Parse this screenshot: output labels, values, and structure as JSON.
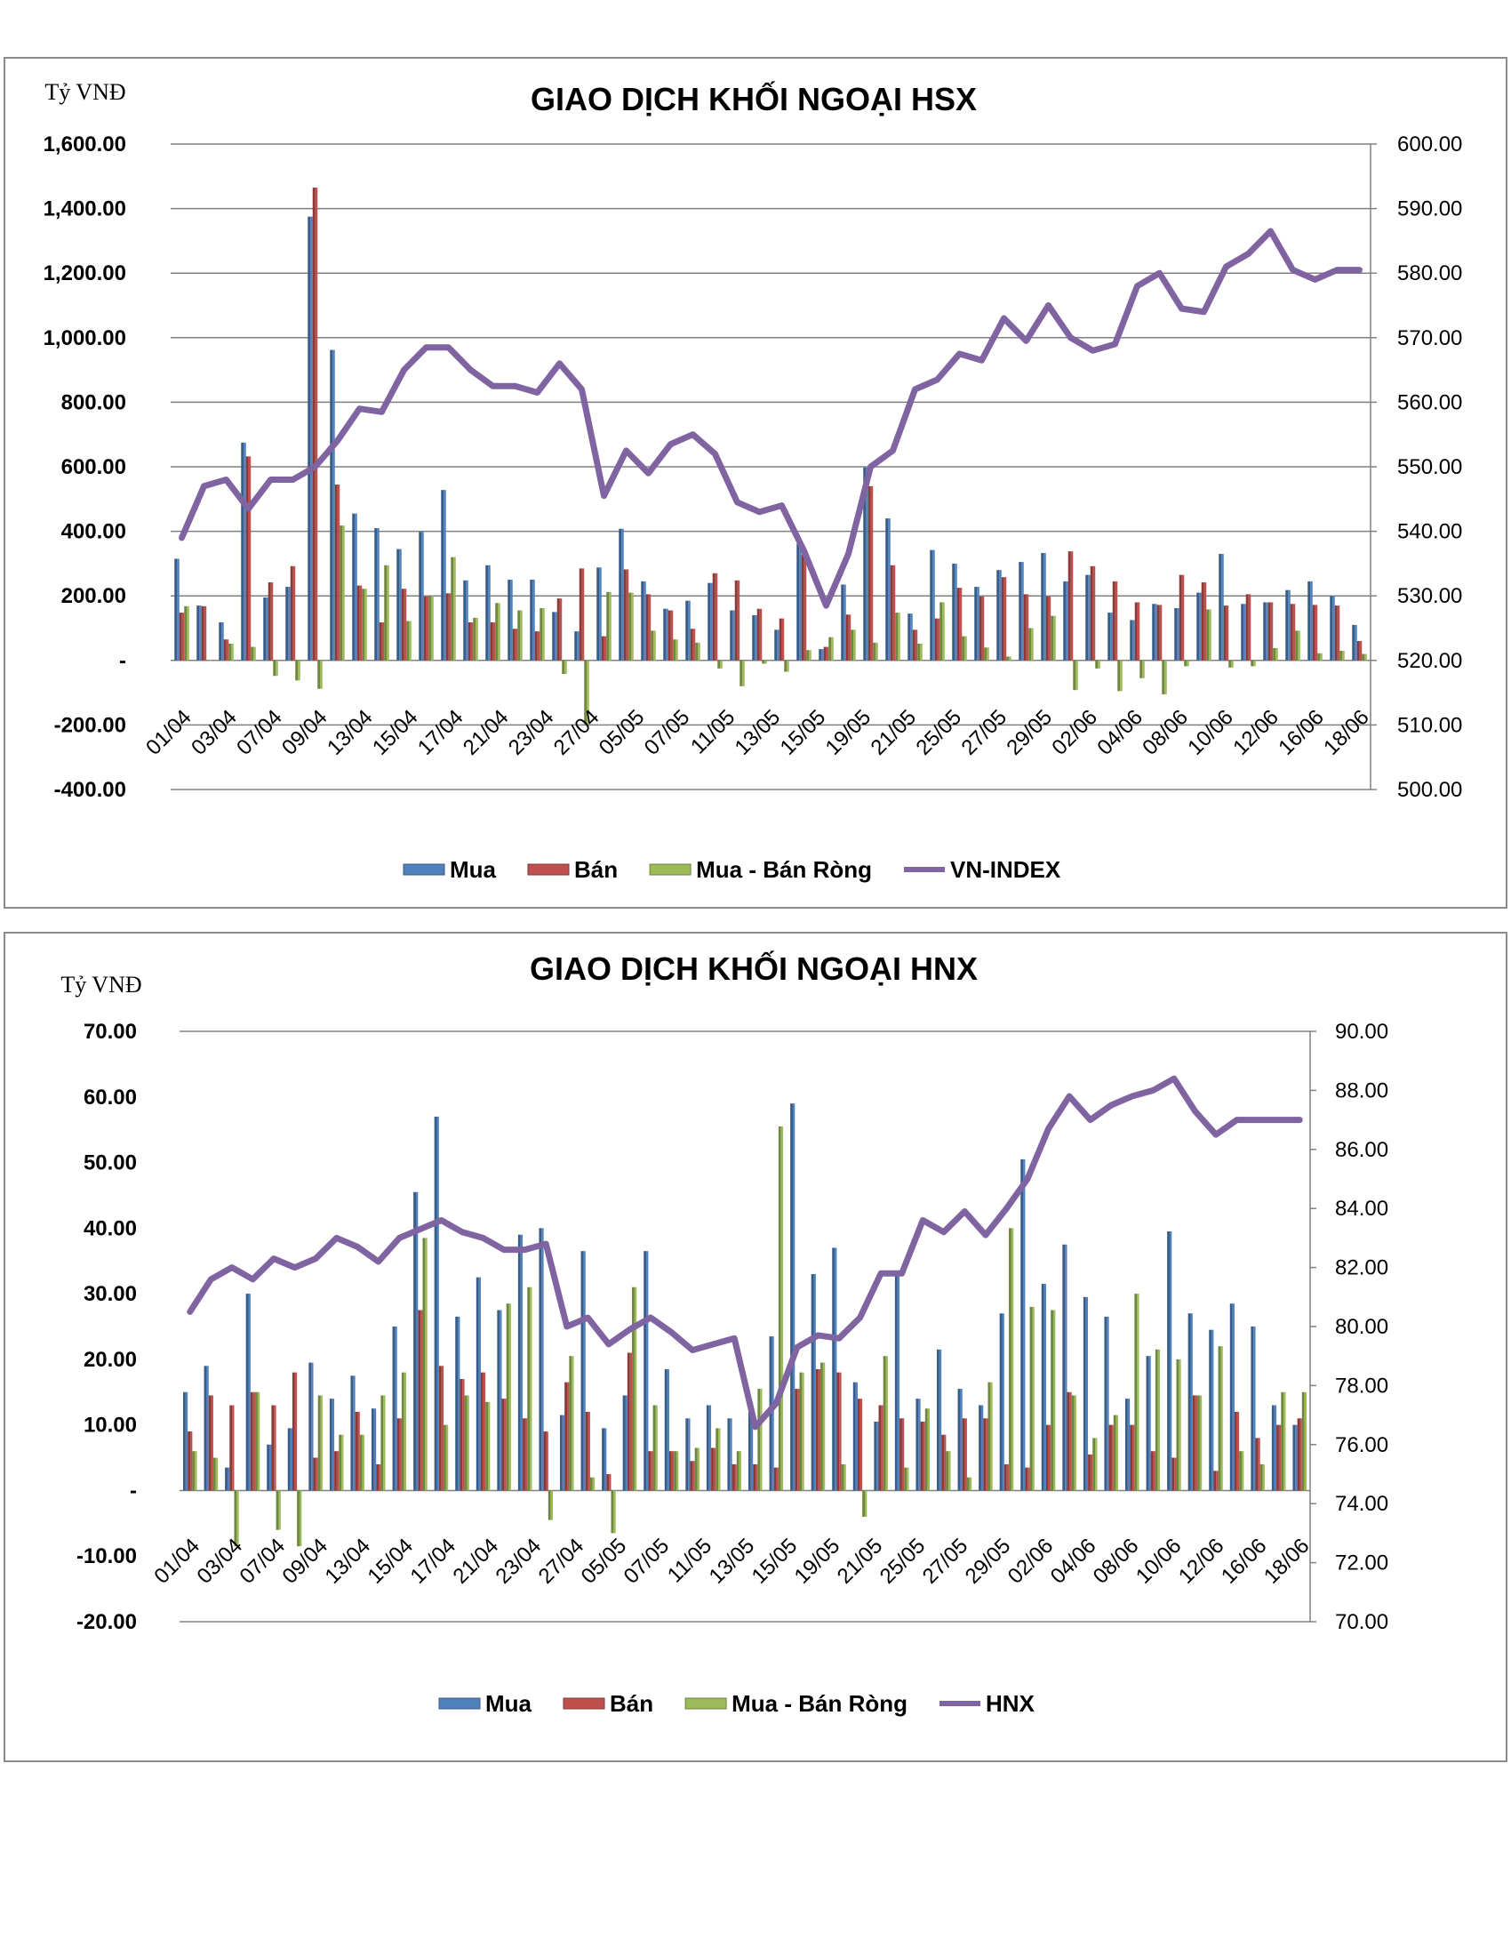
{
  "chart_data": [
    {
      "type": "bar",
      "title": "GIAO DỊCH KHỐI NGOẠI HSX",
      "ylabel": "Tỷ VNĐ",
      "y_ticks": [
        "1,600.00",
        "1,400.00",
        "1,200.00",
        "1,000.00",
        "800.00",
        "600.00",
        "400.00",
        "200.00",
        "-",
        "-200.00",
        "-400.00"
      ],
      "y2_ticks": [
        "600.00",
        "590.00",
        "580.00",
        "570.00",
        "560.00",
        "550.00",
        "540.00",
        "530.00",
        "520.00",
        "510.00",
        "500.00"
      ],
      "ylim": [
        -400,
        1600
      ],
      "y2lim": [
        500,
        600
      ],
      "x_tick_labels": [
        "01/04",
        "03/04",
        "07/04",
        "09/04",
        "13/04",
        "15/04",
        "17/04",
        "21/04",
        "23/04",
        "27/04",
        "05/05",
        "07/05",
        "11/05",
        "13/05",
        "15/05",
        "19/05",
        "21/05",
        "25/05",
        "27/05",
        "29/05",
        "02/06",
        "04/06",
        "08/06",
        "10/06",
        "12/06",
        "16/06",
        "18/06"
      ],
      "n_points": 54,
      "legend_position": "bottom",
      "grid": true,
      "series": [
        {
          "name": "Mua",
          "color": "#4f81bd",
          "axis": "left",
          "values": [
            315,
            170,
            118,
            675,
            195,
            228,
            1375,
            962,
            455,
            410,
            345,
            398,
            528,
            248,
            295,
            250,
            250,
            150,
            90,
            288,
            408,
            245,
            160,
            185,
            240,
            155,
            140,
            95,
            362,
            35,
            235,
            598,
            440,
            145,
            342,
            300,
            228,
            280,
            305,
            333,
            245,
            265,
            148,
            125,
            175,
            162,
            210,
            330,
            175,
            180,
            218,
            245,
            200,
            110
          ]
        },
        {
          "name": "Bán",
          "color": "#c0504d",
          "axis": "left",
          "values": [
            148,
            168,
            65,
            632,
            242,
            292,
            1465,
            545,
            232,
            118,
            222,
            198,
            208,
            118,
            118,
            98,
            90,
            192,
            285,
            75,
            282,
            205,
            155,
            98,
            270,
            248,
            160,
            130,
            328,
            42,
            142,
            540,
            295,
            95,
            130,
            225,
            198,
            258,
            205,
            198,
            338,
            292,
            245,
            180,
            172,
            265,
            242,
            170,
            205,
            180,
            175,
            172,
            170,
            60
          ]
        },
        {
          "name": "Mua - Bán Ròng",
          "color": "#9bbb59",
          "axis": "left",
          "values": [
            168,
            2,
            52,
            42,
            -48,
            -62,
            -88,
            418,
            222,
            295,
            122,
            200,
            320,
            132,
            178,
            155,
            162,
            -42,
            -198,
            212,
            210,
            92,
            65,
            55,
            -25,
            -80,
            -10,
            -35,
            32,
            72,
            95,
            55,
            148,
            52,
            180,
            75,
            40,
            12,
            100,
            138,
            -92,
            -25,
            -95,
            -55,
            -105,
            -18,
            158,
            -22,
            -18,
            38,
            92,
            22,
            30,
            20
          ]
        },
        {
          "name": "VN-INDEX",
          "color": "#8064a2",
          "axis": "right",
          "type": "line",
          "values": [
            539,
            547,
            548,
            543.5,
            548,
            548,
            550,
            554,
            559,
            558.5,
            565,
            568.5,
            568.5,
            565,
            562.5,
            562.5,
            561.5,
            566,
            562,
            545.5,
            552.5,
            549,
            553.5,
            555,
            552,
            544.5,
            543,
            544,
            537,
            528.5,
            536.5,
            550,
            552.5,
            562,
            563.5,
            567.5,
            566.5,
            573,
            569.5,
            575,
            570,
            568,
            569,
            578,
            580,
            574.5,
            574,
            581,
            583,
            586.5,
            580.5,
            579,
            580.5,
            580.5
          ]
        }
      ]
    },
    {
      "type": "bar",
      "title": "GIAO DỊCH KHỐI NGOẠI HNX",
      "ylabel": "Tỷ VNĐ",
      "y_ticks": [
        "70.00",
        "60.00",
        "50.00",
        "40.00",
        "30.00",
        "20.00",
        "10.00",
        "-",
        "-10.00",
        "-20.00"
      ],
      "y2_ticks": [
        "90.00",
        "88.00",
        "86.00",
        "84.00",
        "82.00",
        "80.00",
        "78.00",
        "76.00",
        "74.00",
        "72.00",
        "70.00"
      ],
      "ylim": [
        -20,
        70
      ],
      "y2lim": [
        70,
        90
      ],
      "x_tick_labels": [
        "01/04",
        "03/04",
        "07/04",
        "09/04",
        "13/04",
        "15/04",
        "17/04",
        "21/04",
        "23/04",
        "27/04",
        "05/05",
        "07/05",
        "11/05",
        "13/05",
        "15/05",
        "19/05",
        "21/05",
        "25/05",
        "27/05",
        "29/05",
        "02/06",
        "04/06",
        "08/06",
        "10/06",
        "12/06",
        "16/06",
        "18/06"
      ],
      "n_points": 54,
      "legend_position": "bottom",
      "grid": false,
      "series": [
        {
          "name": "Mua",
          "color": "#4f81bd",
          "axis": "left",
          "values": [
            15,
            19,
            3.5,
            30,
            7,
            9.5,
            19.5,
            14,
            17.5,
            12.5,
            25,
            45.5,
            57,
            26.5,
            32.5,
            27.5,
            39,
            40,
            11.5,
            36.5,
            9.5,
            14.5,
            36.5,
            18.5,
            11,
            13,
            11,
            13.5,
            23.5,
            59,
            33,
            37,
            16.5,
            10.5,
            33.5,
            14,
            21.5,
            15.5,
            13,
            27,
            50.5,
            31.5,
            37.5,
            29.5,
            26.5,
            14,
            20.5,
            39.5,
            27,
            24.5,
            28.5,
            25,
            13,
            10
          ]
        },
        {
          "name": "Bán",
          "color": "#c0504d",
          "axis": "left",
          "values": [
            9,
            14.5,
            13,
            15,
            13,
            18,
            5,
            6,
            12,
            4,
            11,
            27.5,
            19,
            17,
            18,
            14,
            11,
            9,
            16.5,
            12,
            2.5,
            21,
            6,
            6,
            4.5,
            6.5,
            4,
            4,
            3.5,
            15.5,
            18.5,
            18,
            14,
            13,
            11,
            10.5,
            8.5,
            11,
            11,
            4,
            3.5,
            10,
            15,
            5.5,
            10,
            10,
            6,
            5,
            14.5,
            3,
            12,
            8,
            10,
            11
          ]
        },
        {
          "name": "Mua - Bán Ròng",
          "color": "#9bbb59",
          "axis": "left",
          "values": [
            6,
            5,
            -8.5,
            15,
            -6,
            -8.5,
            14.5,
            8.5,
            8.5,
            14.5,
            18,
            38.5,
            10,
            14.5,
            13.5,
            28.5,
            31,
            -4.5,
            20.5,
            2,
            -6.5,
            31,
            13,
            6,
            6.5,
            9.5,
            6,
            15.5,
            55.5,
            18,
            19.5,
            4,
            -4,
            20.5,
            3.5,
            12.5,
            6,
            2,
            16.5,
            40,
            28,
            27.5,
            14.5,
            8,
            11.5,
            30,
            21.5,
            20,
            14.5,
            22,
            6,
            4,
            15,
            15
          ]
        },
        {
          "name": "HNX",
          "color": "#8064a2",
          "axis": "right",
          "type": "line",
          "values": [
            80.5,
            81.6,
            82,
            81.6,
            82.3,
            82,
            82.3,
            83,
            82.7,
            82.2,
            83,
            83.3,
            83.6,
            83.2,
            83,
            82.6,
            82.6,
            82.8,
            80,
            80.3,
            79.4,
            79.9,
            80.3,
            79.8,
            79.2,
            79.4,
            79.6,
            76.6,
            77.4,
            79.3,
            79.7,
            79.6,
            80.3,
            81.8,
            81.8,
            83.6,
            83.2,
            83.9,
            83.1,
            84,
            85,
            86.7,
            87.8,
            87,
            87.5,
            87.8,
            88,
            88.4,
            87.3,
            86.5,
            87,
            87,
            87,
            87
          ]
        }
      ]
    }
  ],
  "legend_labels": {
    "hsx": [
      "Mua",
      "Bán",
      "Mua - Bán Ròng",
      "VN-INDEX"
    ],
    "hnx": [
      "Mua",
      "Bán",
      "Mua - Bán Ròng",
      "HNX"
    ]
  }
}
